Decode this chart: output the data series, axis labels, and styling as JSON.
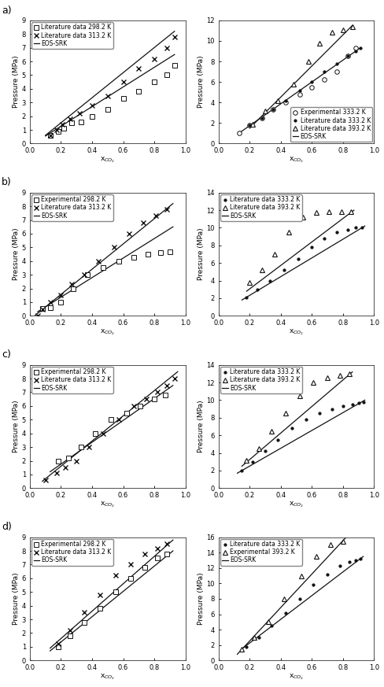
{
  "fig_width": 4.89,
  "fig_height": 8.73,
  "background_color": "#ffffff",
  "line_color": "#111111",
  "marker_color": "#111111",
  "fontsize_label": 6.5,
  "fontsize_tick": 6,
  "fontsize_legend": 5.5,
  "fontsize_panel": 9,
  "xlabel_co2": "x$_{CO_2}$",
  "panels": [
    {
      "row": 0,
      "col": 0,
      "panel_label": "a)",
      "ylabel": "Pressure (MPa)",
      "ylim": [
        0.0,
        9.0
      ],
      "xlim": [
        0,
        1
      ],
      "yticks": [
        0.0,
        1.0,
        2.0,
        3.0,
        4.0,
        5.0,
        6.0,
        7.0,
        8.0,
        9.0
      ],
      "xticks": [
        0,
        0.2,
        0.4,
        0.6,
        0.8,
        1.0
      ],
      "series": [
        {
          "label": "Literature data 298.2 K",
          "marker": "s",
          "mfc": "white",
          "x": [
            0.13,
            0.18,
            0.22,
            0.27,
            0.33,
            0.4,
            0.5,
            0.6,
            0.7,
            0.8,
            0.88,
            0.93
          ],
          "y": [
            0.6,
            0.9,
            1.1,
            1.5,
            1.6,
            2.0,
            2.5,
            3.3,
            3.8,
            4.5,
            5.0,
            5.7
          ]
        },
        {
          "label": "Literature data 313.2 K",
          "marker": "x",
          "mfc": "#111111",
          "x": [
            0.13,
            0.17,
            0.21,
            0.26,
            0.32,
            0.4,
            0.5,
            0.6,
            0.7,
            0.8,
            0.88,
            0.93
          ],
          "y": [
            0.6,
            1.0,
            1.4,
            1.8,
            2.2,
            2.8,
            3.5,
            4.5,
            5.5,
            6.2,
            7.0,
            7.8
          ]
        }
      ],
      "eos_curves": [
        {
          "x": [
            0.1,
            0.93
          ],
          "y": [
            0.55,
            6.5
          ]
        },
        {
          "x": [
            0.1,
            0.93
          ],
          "y": [
            0.6,
            8.2
          ]
        }
      ],
      "legend": [
        {
          "label": "Literature data 298.2 K",
          "marker": "s",
          "mfc": "white"
        },
        {
          "label": "Literature data 313.2 K",
          "marker": "x",
          "mfc": "#111111"
        },
        {
          "label": "EOS-SRK",
          "marker": null
        }
      ],
      "legend_loc": "upper left"
    },
    {
      "row": 0,
      "col": 1,
      "panel_label": "",
      "ylabel": "Pressure (MPa)",
      "ylim": [
        0.0,
        12.0
      ],
      "xlim": [
        0,
        1
      ],
      "yticks": [
        0.0,
        2.0,
        4.0,
        6.0,
        8.0,
        10.0,
        12.0
      ],
      "xticks": [
        0,
        0.2,
        0.4,
        0.6,
        0.8,
        1.0
      ],
      "series": [
        {
          "label": "Experimental 333.2 K",
          "marker": "o",
          "mfc": "white",
          "x": [
            0.13,
            0.2,
            0.28,
            0.35,
            0.43,
            0.52,
            0.6,
            0.68,
            0.76,
            0.83,
            0.88
          ],
          "y": [
            1.0,
            1.8,
            2.5,
            3.3,
            4.0,
            4.8,
            5.5,
            6.2,
            7.0,
            8.5,
            9.3
          ]
        },
        {
          "label": "Literature data 333.2 K",
          "marker": ".",
          "mfc": "#111111",
          "x": [
            0.2,
            0.28,
            0.35,
            0.43,
            0.52,
            0.6,
            0.68,
            0.76,
            0.83,
            0.88,
            0.91
          ],
          "y": [
            1.8,
            2.5,
            3.3,
            4.2,
            5.2,
            6.0,
            7.0,
            7.8,
            8.5,
            9.0,
            9.3
          ]
        },
        {
          "label": "Literature data 393.2 K",
          "marker": "^",
          "mfc": "white",
          "x": [
            0.22,
            0.3,
            0.38,
            0.48,
            0.58,
            0.65,
            0.73,
            0.8,
            0.86
          ],
          "y": [
            1.9,
            3.2,
            4.2,
            5.8,
            8.0,
            9.8,
            10.8,
            11.1,
            11.4
          ]
        }
      ],
      "eos_curves": [
        {
          "x": [
            0.13,
            0.91
          ],
          "y": [
            1.0,
            9.3
          ]
        },
        {
          "x": [
            0.2,
            0.86
          ],
          "y": [
            1.5,
            11.5
          ]
        }
      ],
      "legend": [
        {
          "label": "Experimental 333.2 K",
          "marker": "o",
          "mfc": "white"
        },
        {
          "label": "Literature data 333.2 K",
          "marker": ".",
          "mfc": "#111111"
        },
        {
          "label": "Literature data 393.2 K",
          "marker": "^",
          "mfc": "white"
        },
        {
          "label": "EOS-SRK",
          "marker": null
        }
      ],
      "legend_loc": "lower right"
    },
    {
      "row": 1,
      "col": 0,
      "panel_label": "b)",
      "ylabel": "Pressure (MPa)",
      "ylim": [
        0.0,
        9.0
      ],
      "xlim": [
        0,
        1
      ],
      "yticks": [
        0.0,
        1.0,
        2.0,
        3.0,
        4.0,
        5.0,
        6.0,
        7.0,
        8.0,
        9.0
      ],
      "xticks": [
        0,
        0.2,
        0.4,
        0.6,
        0.8,
        1.0
      ],
      "series": [
        {
          "label": "Experimental 298.2 K",
          "marker": "s",
          "mfc": "white",
          "x": [
            0.08,
            0.13,
            0.2,
            0.28,
            0.37,
            0.47,
            0.57,
            0.67,
            0.76,
            0.84,
            0.9
          ],
          "y": [
            0.55,
            0.6,
            1.0,
            2.0,
            3.0,
            3.5,
            4.0,
            4.3,
            4.5,
            4.6,
            4.7
          ]
        },
        {
          "label": "Literature data 313.2 K",
          "marker": "x",
          "mfc": "#111111",
          "x": [
            0.05,
            0.08,
            0.13,
            0.2,
            0.27,
            0.35,
            0.44,
            0.54,
            0.64,
            0.73,
            0.81,
            0.88
          ],
          "y": [
            0.0,
            0.5,
            1.0,
            1.5,
            2.3,
            3.0,
            4.0,
            5.0,
            6.0,
            6.8,
            7.3,
            7.8
          ]
        }
      ],
      "eos_curves": [
        {
          "x": [
            0.05,
            0.92
          ],
          "y": [
            0.3,
            6.5
          ]
        },
        {
          "x": [
            0.03,
            0.92
          ],
          "y": [
            0.0,
            8.2
          ]
        }
      ],
      "legend": [
        {
          "label": "Experimental 298.2 K",
          "marker": "s",
          "mfc": "white"
        },
        {
          "label": "Literature data 313.2 K",
          "marker": "x",
          "mfc": "#111111"
        },
        {
          "label": "EOS-SRK",
          "marker": null
        }
      ],
      "legend_loc": "upper left"
    },
    {
      "row": 1,
      "col": 1,
      "panel_label": "",
      "ylabel": "Pressure (MPa)",
      "ylim": [
        0.0,
        14.0
      ],
      "xlim": [
        0,
        1
      ],
      "yticks": [
        0.0,
        2.0,
        4.0,
        6.0,
        8.0,
        10.0,
        12.0,
        14.0
      ],
      "xticks": [
        0,
        0.2,
        0.4,
        0.6,
        0.8,
        1.0
      ],
      "series": [
        {
          "label": "Literature data 333.2 K",
          "marker": ".",
          "mfc": "#111111",
          "x": [
            0.18,
            0.25,
            0.33,
            0.42,
            0.51,
            0.6,
            0.68,
            0.76,
            0.83,
            0.88,
            0.92
          ],
          "y": [
            2.1,
            3.0,
            4.0,
            5.2,
            6.5,
            7.8,
            8.8,
            9.5,
            9.8,
            10.0,
            10.0
          ]
        },
        {
          "label": "Literature data 393.2 K",
          "marker": "^",
          "mfc": "white",
          "x": [
            0.2,
            0.28,
            0.36,
            0.45,
            0.54,
            0.63,
            0.71,
            0.79,
            0.85
          ],
          "y": [
            3.8,
            5.2,
            7.0,
            9.5,
            11.2,
            11.7,
            11.8,
            11.8,
            11.8
          ]
        }
      ],
      "eos_curves": [
        {
          "x": [
            0.15,
            0.94
          ],
          "y": [
            1.8,
            10.2
          ]
        },
        {
          "x": [
            0.18,
            0.87
          ],
          "y": [
            2.8,
            12.0
          ]
        }
      ],
      "legend": [
        {
          "label": "Literature data 333.2 K",
          "marker": ".",
          "mfc": "#111111"
        },
        {
          "label": "Literature data 393.2 K",
          "marker": "^",
          "mfc": "white"
        },
        {
          "label": "EOS-SRK",
          "marker": null
        }
      ],
      "legend_loc": "upper left"
    },
    {
      "row": 2,
      "col": 0,
      "panel_label": "c)",
      "ylabel": "Pressure (MPa)",
      "ylim": [
        0.0,
        9.0
      ],
      "xlim": [
        0,
        1
      ],
      "yticks": [
        0.0,
        1.0,
        2.0,
        3.0,
        4.0,
        5.0,
        6.0,
        7.0,
        8.0,
        9.0
      ],
      "xticks": [
        0,
        0.2,
        0.4,
        0.6,
        0.8,
        1.0
      ],
      "series": [
        {
          "label": "Experimental 298.2 K",
          "marker": "s",
          "mfc": "white",
          "x": [
            0.18,
            0.25,
            0.33,
            0.42,
            0.52,
            0.62,
            0.71,
            0.8,
            0.87
          ],
          "y": [
            2.0,
            2.2,
            3.0,
            4.0,
            5.0,
            5.5,
            6.0,
            6.5,
            6.8
          ]
        },
        {
          "label": "Literature data 313.2 K",
          "marker": "x",
          "mfc": "#111111",
          "x": [
            0.1,
            0.17,
            0.23,
            0.3,
            0.38,
            0.47,
            0.57,
            0.67,
            0.75,
            0.82,
            0.88,
            0.93
          ],
          "y": [
            0.6,
            1.1,
            1.5,
            2.0,
            3.0,
            4.0,
            5.0,
            6.0,
            6.5,
            7.0,
            7.5,
            8.0
          ]
        }
      ],
      "eos_curves": [
        {
          "x": [
            0.13,
            0.92
          ],
          "y": [
            1.2,
            7.5
          ]
        },
        {
          "x": [
            0.08,
            0.95
          ],
          "y": [
            0.5,
            8.5
          ]
        }
      ],
      "legend": [
        {
          "label": "Experimental 298.2 K",
          "marker": "s",
          "mfc": "white"
        },
        {
          "label": "Literature data 313.2 K",
          "marker": "x",
          "mfc": "#111111"
        },
        {
          "label": "EOS-SRK",
          "marker": null
        }
      ],
      "legend_loc": "upper left"
    },
    {
      "row": 2,
      "col": 1,
      "panel_label": "",
      "ylabel": "Pressure (MPa)",
      "ylim": [
        0.0,
        14.0
      ],
      "xlim": [
        0,
        1
      ],
      "yticks": [
        0.0,
        2.0,
        4.0,
        6.0,
        8.0,
        10.0,
        12.0,
        14.0
      ],
      "xticks": [
        0,
        0.2,
        0.4,
        0.6,
        0.8,
        1.0
      ],
      "series": [
        {
          "label": "Literature data 333.2 K",
          "marker": ".",
          "mfc": "#111111",
          "x": [
            0.15,
            0.22,
            0.3,
            0.38,
            0.47,
            0.56,
            0.65,
            0.73,
            0.8,
            0.86,
            0.9,
            0.93
          ],
          "y": [
            2.0,
            3.0,
            4.2,
            5.5,
            6.8,
            7.8,
            8.5,
            9.0,
            9.3,
            9.5,
            9.7,
            9.8
          ]
        },
        {
          "label": "Literature data 393.2 K",
          "marker": "^",
          "mfc": "white",
          "x": [
            0.18,
            0.26,
            0.34,
            0.43,
            0.52,
            0.61,
            0.7,
            0.78,
            0.84
          ],
          "y": [
            3.2,
            4.5,
            6.5,
            8.5,
            10.5,
            12.0,
            12.5,
            12.8,
            13.0
          ]
        }
      ],
      "eos_curves": [
        {
          "x": [
            0.12,
            0.94
          ],
          "y": [
            1.7,
            10.0
          ]
        },
        {
          "x": [
            0.15,
            0.86
          ],
          "y": [
            2.5,
            13.2
          ]
        }
      ],
      "legend": [
        {
          "label": "Literature data 333.2 K",
          "marker": ".",
          "mfc": "#111111"
        },
        {
          "label": "Literature data 393.2 K",
          "marker": "^",
          "mfc": "white"
        },
        {
          "label": "EOS-SRK",
          "marker": null
        }
      ],
      "legend_loc": "upper left"
    },
    {
      "row": 3,
      "col": 0,
      "panel_label": "d)",
      "ylabel": "Pressure (MPa)",
      "ylim": [
        0.0,
        9.0
      ],
      "xlim": [
        0,
        1
      ],
      "yticks": [
        0.0,
        1.0,
        2.0,
        3.0,
        4.0,
        5.0,
        6.0,
        7.0,
        8.0,
        9.0
      ],
      "xticks": [
        0,
        0.2,
        0.4,
        0.6,
        0.8,
        1.0
      ],
      "series": [
        {
          "label": "Experimental 298.2 K",
          "marker": "s",
          "mfc": "white",
          "x": [
            0.18,
            0.26,
            0.35,
            0.45,
            0.55,
            0.65,
            0.74,
            0.82,
            0.88
          ],
          "y": [
            1.0,
            1.8,
            2.8,
            3.8,
            5.0,
            6.0,
            6.8,
            7.5,
            7.8
          ]
        },
        {
          "label": "Literature data 313.2 K",
          "marker": "x",
          "mfc": "#111111",
          "x": [
            0.18,
            0.26,
            0.35,
            0.45,
            0.55,
            0.65,
            0.74,
            0.82,
            0.88
          ],
          "y": [
            1.2,
            2.2,
            3.5,
            4.8,
            6.2,
            7.0,
            7.8,
            8.2,
            8.5
          ]
        }
      ],
      "eos_curves": [
        {
          "x": [
            0.13,
            0.92
          ],
          "y": [
            0.7,
            8.0
          ]
        },
        {
          "x": [
            0.13,
            0.92
          ],
          "y": [
            0.9,
            8.8
          ]
        }
      ],
      "legend": [
        {
          "label": "Experimental 298.2 K",
          "marker": "s",
          "mfc": "white"
        },
        {
          "label": "Literature data 313.2 K",
          "marker": "x",
          "mfc": "#111111"
        },
        {
          "label": "EOS-SRK",
          "marker": null
        }
      ],
      "legend_loc": "upper left"
    },
    {
      "row": 3,
      "col": 1,
      "panel_label": "",
      "ylabel": "Pressure (MPa)",
      "ylim": [
        0.0,
        16.0
      ],
      "xlim": [
        0,
        1
      ],
      "yticks": [
        0.0,
        2.0,
        4.0,
        6.0,
        8.0,
        10.0,
        12.0,
        14.0,
        16.0
      ],
      "xticks": [
        0,
        0.2,
        0.4,
        0.6,
        0.8,
        1.0
      ],
      "series": [
        {
          "label": "Literature data 333.2 K",
          "marker": ".",
          "mfc": "#111111",
          "x": [
            0.18,
            0.26,
            0.34,
            0.43,
            0.52,
            0.61,
            0.7,
            0.78,
            0.84,
            0.88,
            0.91
          ],
          "y": [
            1.8,
            3.0,
            4.5,
            6.2,
            8.0,
            9.8,
            11.2,
            12.3,
            12.8,
            13.0,
            13.2
          ]
        },
        {
          "label": "Experimental 393.2 K",
          "marker": "^",
          "mfc": "white",
          "x": [
            0.15,
            0.23,
            0.32,
            0.42,
            0.53,
            0.63,
            0.72,
            0.8
          ],
          "y": [
            1.5,
            3.0,
            5.0,
            8.0,
            11.0,
            13.5,
            15.0,
            15.5
          ]
        }
      ],
      "eos_curves": [
        {
          "x": [
            0.15,
            0.93
          ],
          "y": [
            1.5,
            13.5
          ]
        },
        {
          "x": [
            0.12,
            0.82
          ],
          "y": [
            0.8,
            16.0
          ]
        }
      ],
      "legend": [
        {
          "label": "Literature data 333.2 K",
          "marker": ".",
          "mfc": "#111111"
        },
        {
          "label": "Experimental 393.2 K",
          "marker": "^",
          "mfc": "white"
        },
        {
          "label": "EOS-SRK",
          "marker": null
        }
      ],
      "legend_loc": "upper left"
    }
  ]
}
